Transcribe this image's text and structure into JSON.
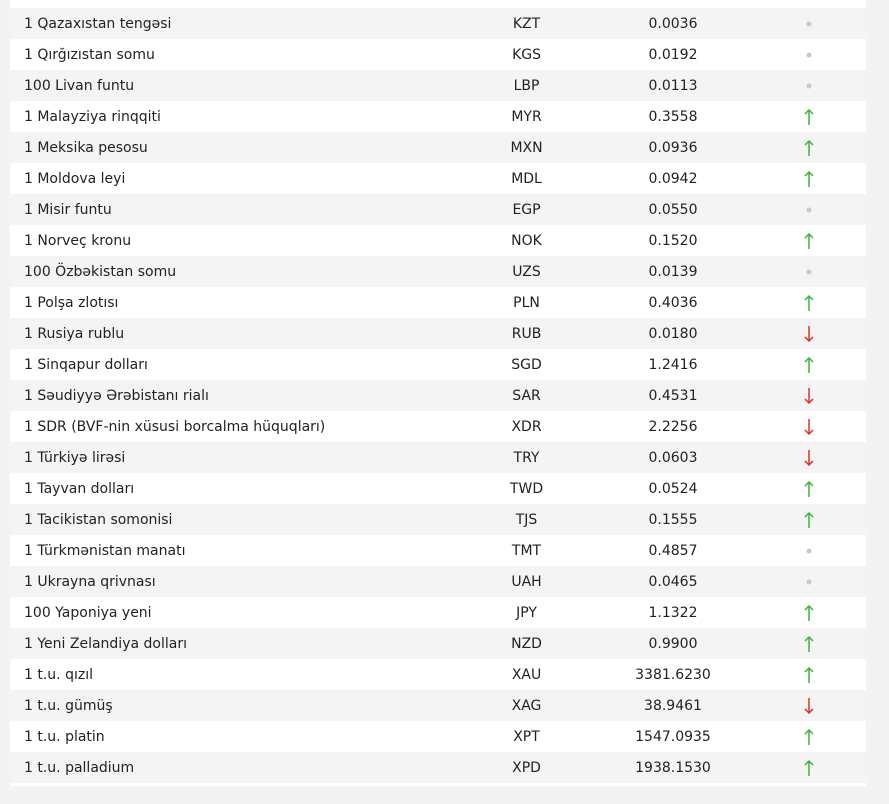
{
  "table": {
    "rows": [
      [
        "1 Qazaxıstan tengəsi",
        "KZT",
        "0.0036",
        "none"
      ],
      [
        "1 Qırğızıstan somu",
        "KGS",
        "0.0192",
        "none"
      ],
      [
        "100 Livan funtu",
        "LBP",
        "0.0113",
        "none"
      ],
      [
        "1 Malayziya rinqqiti",
        "MYR",
        "0.3558",
        "up"
      ],
      [
        "1 Meksika pesosu",
        "MXN",
        "0.0936",
        "up"
      ],
      [
        "1 Moldova leyi",
        "MDL",
        "0.0942",
        "up"
      ],
      [
        "1 Misir funtu",
        "EGP",
        "0.0550",
        "none"
      ],
      [
        "1 Norveç kronu",
        "NOK",
        "0.1520",
        "up"
      ],
      [
        "100 Özbəkistan somu",
        "UZS",
        "0.0139",
        "none"
      ],
      [
        "1 Polşa zlotısı",
        "PLN",
        "0.4036",
        "up"
      ],
      [
        "1 Rusiya rublu",
        "RUB",
        "0.0180",
        "down"
      ],
      [
        "1 Sinqapur dolları",
        "SGD",
        "1.2416",
        "up"
      ],
      [
        "1 Səudiyyə Ərəbistanı rialı",
        "SAR",
        "0.4531",
        "down"
      ],
      [
        "1 SDR (BVF-nin xüsusi borcalma hüquqları)",
        "XDR",
        "2.2256",
        "down"
      ],
      [
        "1 Türkiyə lirəsi",
        "TRY",
        "0.0603",
        "down"
      ],
      [
        "1 Tayvan dolları",
        "TWD",
        "0.0524",
        "up"
      ],
      [
        "1 Tacikistan somonisi",
        "TJS",
        "0.1555",
        "up"
      ],
      [
        "1 Türkmənistan manatı",
        "TMT",
        "0.4857",
        "none"
      ],
      [
        "1 Ukrayna qrivnası",
        "UAH",
        "0.0465",
        "none"
      ],
      [
        "100 Yaponiya yeni",
        "JPY",
        "1.1322",
        "up"
      ],
      [
        "1 Yeni Zelandiya dolları",
        "NZD",
        "0.9900",
        "up"
      ],
      [
        "1 t.u. qızıl",
        "XAU",
        "3381.6230",
        "up"
      ],
      [
        "1 t.u. gümüş",
        "XAG",
        "38.9461",
        "down"
      ],
      [
        "1 t.u. platin",
        "XPT",
        "1547.0935",
        "up"
      ],
      [
        "1 t.u. palladium",
        "XPD",
        "1938.1530",
        "up"
      ]
    ]
  }
}
